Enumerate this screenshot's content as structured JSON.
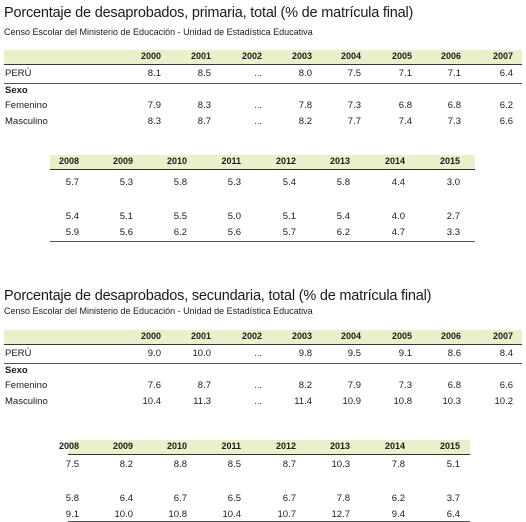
{
  "primaria": {
    "title": "Porcentaje de desaprobados, primaria, total (% de matrícula final)",
    "subtitle": "Censo Escolar del Ministerio de Educación - Unidad de Estadística Educativa",
    "years_a": [
      "2000",
      "2001",
      "2002",
      "2003",
      "2004",
      "2005",
      "2006",
      "2007"
    ],
    "rows_a": [
      {
        "label": "PERÚ",
        "values": [
          "8.1",
          "8.5",
          "...",
          "8.0",
          "7.5",
          "7.1",
          "7.1",
          "6.4"
        ]
      },
      {
        "label": "Sexo"
      },
      {
        "label": "Femenino",
        "values": [
          "7.9",
          "8.3",
          "...",
          "7.8",
          "7.3",
          "6.8",
          "6.8",
          "6.2"
        ]
      },
      {
        "label": "Masculino",
        "values": [
          "8.3",
          "8.7",
          "...",
          "8.2",
          "7.7",
          "7.4",
          "7.3",
          "6.6"
        ]
      }
    ],
    "years_b": [
      "2008",
      "2009",
      "2010",
      "2011",
      "2012",
      "2013",
      "2014",
      "2015"
    ],
    "rows_b": [
      [
        "5.7",
        "5.3",
        "5.8",
        "5.3",
        "5.4",
        "5.8",
        "4.4",
        "3.0"
      ],
      [
        "5.4",
        "5.1",
        "5.5",
        "5.0",
        "5.1",
        "5.4",
        "4.0",
        "2.7"
      ],
      [
        "5.9",
        "5.6",
        "6.2",
        "5.6",
        "5.7",
        "6.2",
        "4.7",
        "3.3"
      ]
    ]
  },
  "secundaria": {
    "title": "Porcentaje de desaprobados, secundaria, total (% de matrícula final)",
    "subtitle": "Censo Escolar del Ministerio de Educación - Unidad de Estadística Educativa",
    "years_a": [
      "2000",
      "2001",
      "2002",
      "2003",
      "2004",
      "2005",
      "2006",
      "2007"
    ],
    "rows_a": [
      {
        "label": "PERÚ",
        "values": [
          "9.0",
          "10.0",
          "...",
          "9.8",
          "9.5",
          "9.1",
          "8.6",
          "8.4"
        ]
      },
      {
        "label": "Sexo"
      },
      {
        "label": "Femenino",
        "values": [
          "7.6",
          "8.7",
          "...",
          "8.2",
          "7.9",
          "7.3",
          "6.8",
          "6.6"
        ]
      },
      {
        "label": "Masculino",
        "values": [
          "10.4",
          "11.3",
          "...",
          "11.4",
          "10.9",
          "10.8",
          "10.3",
          "10.2"
        ]
      }
    ],
    "years_b": [
      "2008",
      "2009",
      "2010",
      "2011",
      "2012",
      "2013",
      "2014",
      "2015"
    ],
    "rows_b": [
      [
        "7.5",
        "8.2",
        "8.8",
        "8.5",
        "8.7",
        "10.3",
        "7.8",
        "5.1"
      ],
      [
        "5.8",
        "6.4",
        "6.7",
        "6.5",
        "6.7",
        "7.8",
        "6.2",
        "3.7"
      ],
      [
        "9.1",
        "10.0",
        "10.8",
        "10.4",
        "10.7",
        "12.7",
        "9.4",
        "6.4"
      ]
    ]
  }
}
